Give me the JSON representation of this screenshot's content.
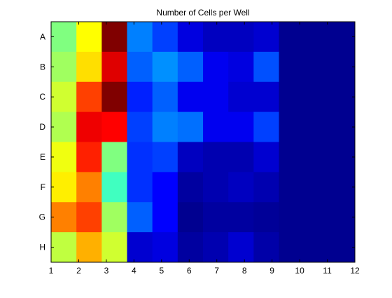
{
  "chart_data": {
    "type": "heatmap",
    "title": "Number of Cells per Well",
    "xlabel": "",
    "ylabel": "",
    "x_ticks": [
      "1",
      "2",
      "3",
      "4",
      "5",
      "6",
      "7",
      "8",
      "9",
      "10",
      "11",
      "12"
    ],
    "x_range": [
      1,
      12
    ],
    "y_categories": [
      "A",
      "B",
      "C",
      "D",
      "E",
      "F",
      "G",
      "H"
    ],
    "colormap": "jet",
    "cell_colors": [
      [
        "#80ff80",
        "#ffff00",
        "#800000",
        "#0080ff",
        "#0040ff",
        "#0000e0",
        "#0000c0",
        "#0000c0",
        "#0000d0",
        "#000090",
        "#000090",
        "#000090"
      ],
      [
        "#a0ff60",
        "#ffdf00",
        "#df0000",
        "#0060ff",
        "#0090ff",
        "#0060ff",
        "#0000f0",
        "#0000e0",
        "#0050ff",
        "#000090",
        "#000090",
        "#000090"
      ],
      [
        "#d0ff30",
        "#ff4000",
        "#800000",
        "#0020ff",
        "#0060ff",
        "#0000f0",
        "#0000f0",
        "#0000d0",
        "#0000d0",
        "#000090",
        "#000090",
        "#000090"
      ],
      [
        "#b0ff50",
        "#ef0000",
        "#ff0000",
        "#0040ff",
        "#0080ff",
        "#0070ff",
        "#0000f0",
        "#0000f0",
        "#0040ff",
        "#000090",
        "#000090",
        "#000090"
      ],
      [
        "#f0ff10",
        "#ff2000",
        "#80ff80",
        "#0030ff",
        "#0040ff",
        "#0000c0",
        "#0000b0",
        "#0000b0",
        "#0000d0",
        "#000090",
        "#000090",
        "#000090"
      ],
      [
        "#ffef00",
        "#ff8000",
        "#40ffc0",
        "#0030ff",
        "#0000ff",
        "#0000a0",
        "#0000b0",
        "#0000c0",
        "#0000b0",
        "#000090",
        "#000090",
        "#000090"
      ],
      [
        "#ff8000",
        "#ff4000",
        "#a0ff60",
        "#0060ff",
        "#0000ff",
        "#000090",
        "#0000a0",
        "#0000a0",
        "#000098",
        "#000090",
        "#000090",
        "#000090"
      ],
      [
        "#c0ff40",
        "#ffb000",
        "#d0ff30",
        "#0000d0",
        "#0000e0",
        "#0000a0",
        "#0000b0",
        "#0000d0",
        "#0000a8",
        "#000090",
        "#000090",
        "#000090"
      ]
    ],
    "grid": false,
    "legend": "none",
    "colorbar": false
  }
}
